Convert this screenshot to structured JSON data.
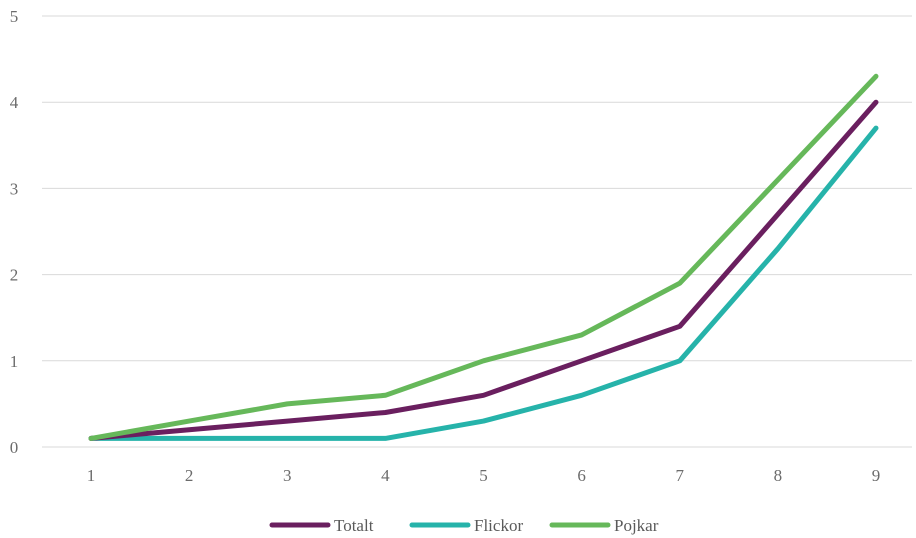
{
  "chart_data": {
    "type": "line",
    "title": "",
    "xlabel": "",
    "ylabel": "",
    "categories": [
      "1",
      "2",
      "3",
      "4",
      "5",
      "6",
      "7",
      "8",
      "9"
    ],
    "ylim": [
      0,
      5
    ],
    "yticks": [
      "0",
      "1",
      "2",
      "3",
      "4",
      "5"
    ],
    "grid": true,
    "legend_position": "bottom",
    "series": [
      {
        "name": "Totalt",
        "color": "#6a1f5f",
        "values": [
          0.1,
          0.2,
          0.3,
          0.4,
          0.6,
          1.0,
          1.4,
          2.7,
          4.0
        ]
      },
      {
        "name": "Flickor",
        "color": "#26b3aa",
        "values": [
          0.1,
          0.1,
          0.1,
          0.1,
          0.3,
          0.6,
          1.0,
          2.3,
          3.7
        ]
      },
      {
        "name": "Pojkar",
        "color": "#66b85a",
        "values": [
          0.1,
          0.3,
          0.5,
          0.6,
          1.0,
          1.3,
          1.9,
          3.1,
          4.3
        ]
      }
    ]
  }
}
